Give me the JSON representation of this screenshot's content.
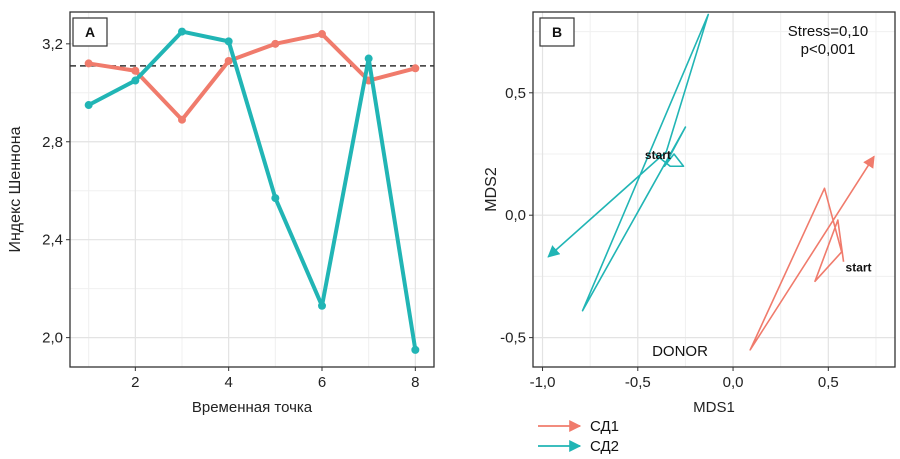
{
  "chart_data": [
    {
      "type": "line",
      "panel_label": "A",
      "xlabel": "Временная точка",
      "ylabel": "Индекс Шеннона",
      "xlim": [
        0.6,
        8.4
      ],
      "ylim": [
        1.88,
        3.33
      ],
      "x_ticks": [
        2,
        4,
        6,
        8
      ],
      "x_tick_labels": [
        "2",
        "4",
        "6",
        "8"
      ],
      "y_ticks": [
        2.0,
        2.4,
        2.8,
        3.2
      ],
      "y_tick_labels": [
        "2,0",
        "2,4",
        "2,8",
        "3,2"
      ],
      "grid": true,
      "reference_line": {
        "y": 3.11,
        "style": "dashed"
      },
      "x": [
        1,
        2,
        3,
        4,
        5,
        6,
        7,
        8
      ],
      "series": [
        {
          "color": "#F07B6C",
          "values": [
            3.12,
            3.09,
            2.89,
            3.13,
            3.2,
            3.24,
            3.05,
            3.1
          ]
        },
        {
          "color": "#21B5B5",
          "values": [
            2.95,
            3.05,
            3.25,
            3.21,
            2.57,
            2.13,
            3.14,
            1.95
          ]
        }
      ]
    },
    {
      "type": "line",
      "panel_label": "B",
      "xlabel": "MDS1",
      "ylabel": "MDS2",
      "xlim": [
        -1.05,
        0.85
      ],
      "ylim": [
        -0.62,
        0.83
      ],
      "x_ticks": [
        -1.0,
        -0.5,
        0.0,
        0.5
      ],
      "x_tick_labels": [
        "-1,0",
        "-0,5",
        "0,0",
        "0,5"
      ],
      "y_ticks": [
        -0.5,
        0.0,
        0.5
      ],
      "y_tick_labels": [
        "-0,5",
        "0,0",
        "0,5"
      ],
      "grid": true,
      "annotations": [
        "Stress=0,10",
        "p<0,001",
        "DONOR"
      ],
      "legend_position": "bottom-left",
      "series": [
        {
          "name": "СД1",
          "color": "#F07B6C",
          "start_label": "start",
          "points": [
            [
              0.58,
              -0.19
            ],
            [
              0.55,
              -0.02
            ],
            [
              0.43,
              -0.27
            ],
            [
              0.57,
              -0.15
            ],
            [
              0.48,
              0.11
            ],
            [
              0.09,
              -0.55
            ],
            [
              0.74,
              0.24
            ]
          ]
        },
        {
          "name": "СД2",
          "color": "#21B5B5",
          "start_label": "start",
          "points": [
            [
              -0.41,
              0.25
            ],
            [
              -0.33,
              0.2
            ],
            [
              -0.26,
              0.2
            ],
            [
              -0.31,
              0.25
            ],
            [
              -0.36,
              0.2
            ],
            [
              -0.25,
              0.36
            ],
            [
              -0.79,
              -0.39
            ],
            [
              -0.13,
              0.82
            ],
            [
              -0.35,
              0.26
            ],
            [
              -0.97,
              -0.17
            ]
          ]
        }
      ]
    }
  ]
}
